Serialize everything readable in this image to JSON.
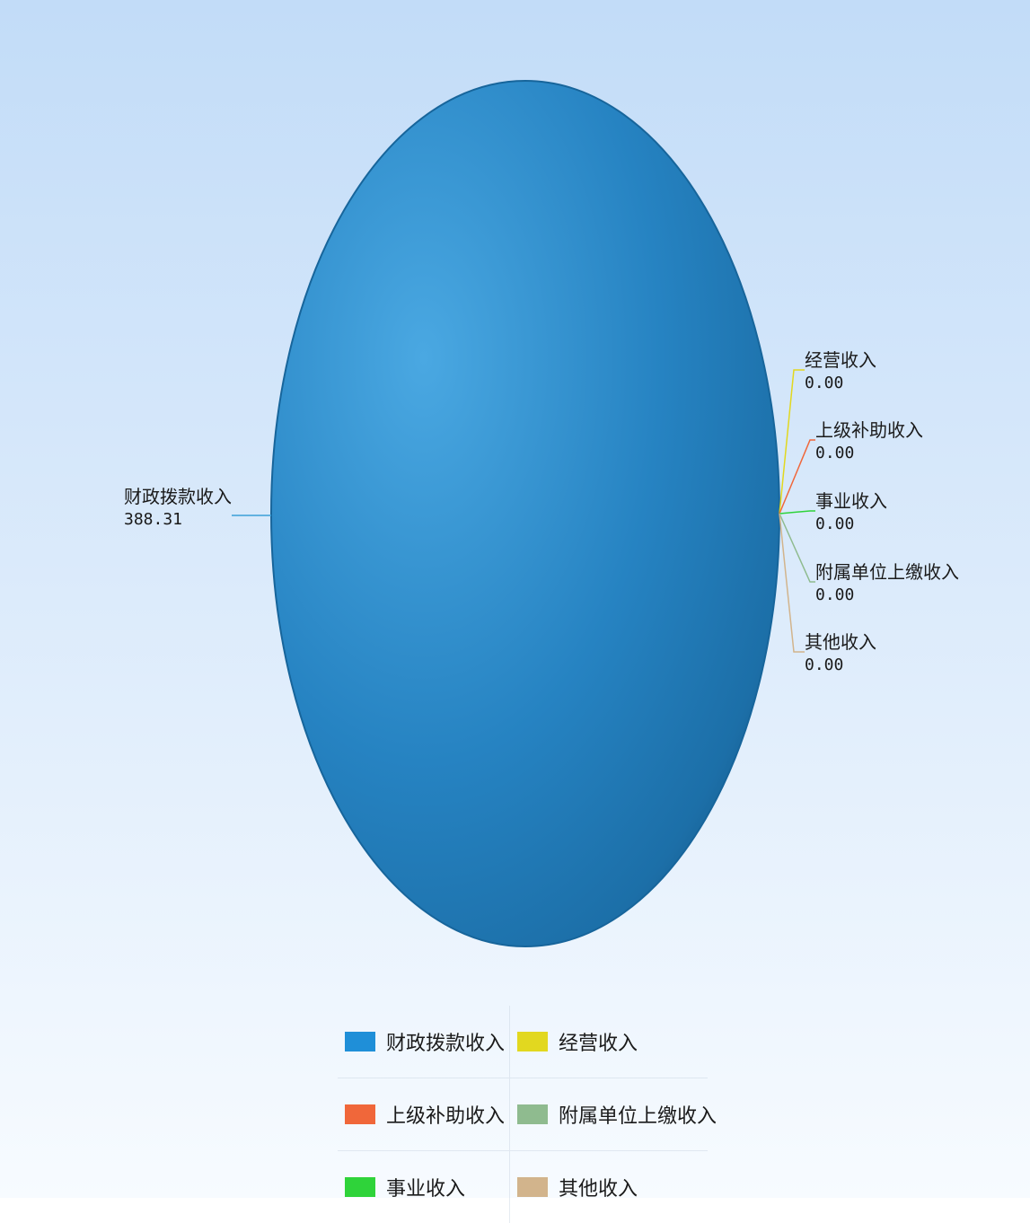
{
  "chart_data": {
    "type": "pie",
    "title": "",
    "slices": [
      {
        "label": "财政拨款收入",
        "value": 388.31,
        "value_text": "388.31",
        "color": "#1f8fd8"
      },
      {
        "label": "经营收入",
        "value": 0.0,
        "value_text": "0.00",
        "color": "#e2d81f"
      },
      {
        "label": "上级补助收入",
        "value": 0.0,
        "value_text": "0.00",
        "color": "#f0673a"
      },
      {
        "label": "事业收入",
        "value": 0.0,
        "value_text": "0.00",
        "color": "#2fd33a"
      },
      {
        "label": "附属单位上缴收入",
        "value": 0.0,
        "value_text": "0.00",
        "color": "#8fbb8f"
      },
      {
        "label": "其他收入",
        "value": 0.0,
        "value_text": "0.00",
        "color": "#d2b48c"
      }
    ],
    "legend": {
      "placement": "bottom",
      "items": [
        {
          "label": "财政拨款收入",
          "color": "#1f8fd8"
        },
        {
          "label": "经营收入",
          "color": "#e2d81f"
        },
        {
          "label": "上级补助收入",
          "color": "#f0673a"
        },
        {
          "label": "附属单位上缴收入",
          "color": "#8fbb8f"
        },
        {
          "label": "事业收入",
          "color": "#2fd33a"
        },
        {
          "label": "其他收入",
          "color": "#d2b48c"
        }
      ]
    }
  }
}
